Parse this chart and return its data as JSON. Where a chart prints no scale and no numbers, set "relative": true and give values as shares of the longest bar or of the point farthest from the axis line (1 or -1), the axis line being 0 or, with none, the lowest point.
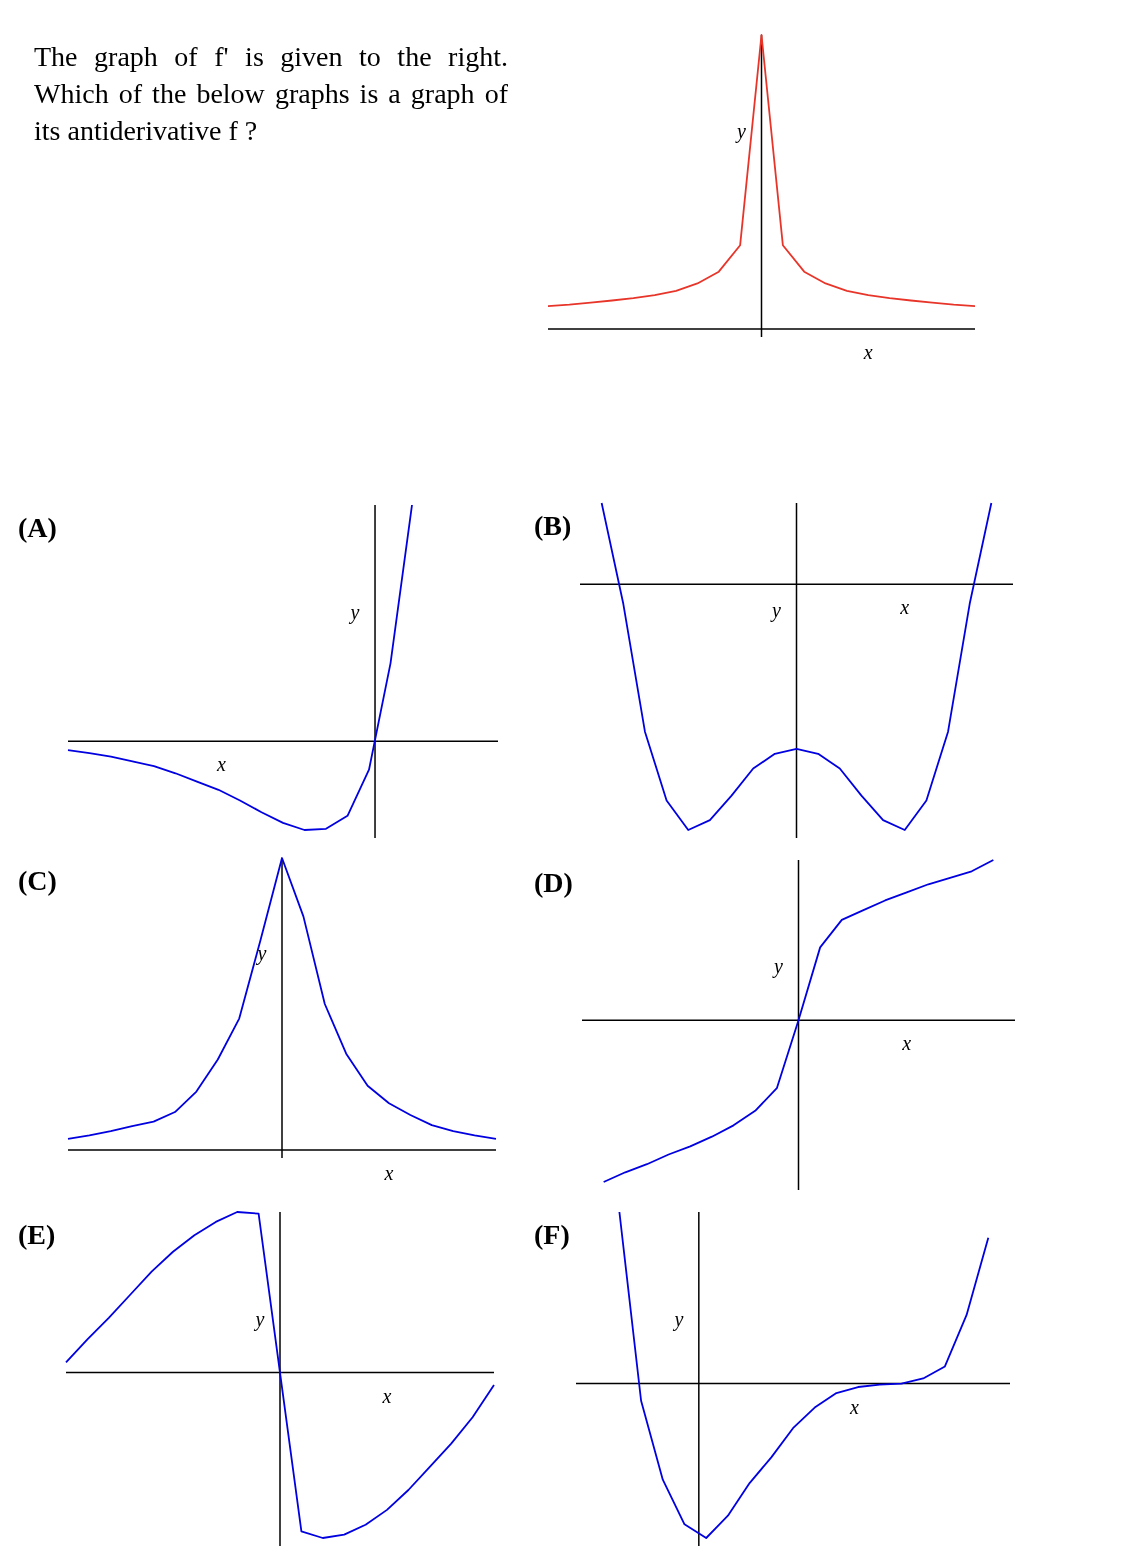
{
  "chart_data": [
    {
      "type": "other",
      "title": "The graph of f' is given to the right. Which of the below graphs is a graph of its antiderivative f ?"
    },
    {
      "type": "line",
      "relative": true,
      "xlabel": "x",
      "ylabel": "y",
      "categories": [
        null,
        null,
        null,
        null,
        null,
        null,
        null,
        null,
        null,
        null,
        null,
        null,
        null,
        null,
        null,
        null,
        null,
        null,
        null,
        null,
        null
      ],
      "series": [
        {
          "color": "#e8352a",
          "values": [
            0.078,
            0.083,
            0.09,
            0.097,
            0.105,
            0.115,
            0.13,
            0.155,
            0.195,
            0.285,
            1,
            0.285,
            0.195,
            0.155,
            0.13,
            0.115,
            0.105,
            0.097,
            0.09,
            0.083,
            0.078
          ]
        }
      ]
    },
    {
      "type": "line",
      "relative": true,
      "title": "(A)",
      "xlabel": "x",
      "ylabel": "y",
      "categories": [
        null,
        null,
        null,
        null,
        null,
        null,
        null,
        null,
        null,
        null,
        null,
        null,
        null,
        null,
        null,
        null,
        null,
        null,
        null,
        null,
        null
      ],
      "series": [
        {
          "color": "#0000e0",
          "values": [
            -0.037,
            -0.05,
            -0.065,
            -0.085,
            -0.105,
            -0.135,
            -0.17,
            -0.205,
            -0.25,
            -0.3,
            -0.345,
            -0.375,
            -0.37,
            -0.315,
            -0.12,
            0.33,
            1,
            null,
            null,
            null,
            null
          ]
        }
      ]
    },
    {
      "type": "line",
      "relative": true,
      "title": "(B)",
      "xlabel": "x",
      "ylabel": "y",
      "categories": [
        null,
        null,
        null,
        null,
        null,
        null,
        null,
        null,
        null,
        null,
        null,
        null,
        null,
        null,
        null,
        null,
        null,
        null,
        null,
        null,
        null
      ],
      "series": [
        {
          "color": "#0000e0",
          "values": [
            null,
            0.33,
            -0.08,
            -0.6,
            -0.88,
            -1,
            -0.96,
            -0.86,
            -0.75,
            -0.69,
            -0.67,
            -0.69,
            -0.75,
            -0.86,
            -0.96,
            -1,
            -0.88,
            -0.6,
            -0.08,
            0.33,
            null
          ]
        }
      ]
    },
    {
      "type": "line",
      "relative": true,
      "title": "(C)",
      "xlabel": "x",
      "ylabel": "y",
      "categories": [
        null,
        null,
        null,
        null,
        null,
        null,
        null,
        null,
        null,
        null,
        null,
        null,
        null,
        null,
        null,
        null,
        null,
        null,
        null,
        null,
        null
      ],
      "series": [
        {
          "color": "#0000e0",
          "values": [
            0.038,
            0.05,
            0.065,
            0.082,
            0.097,
            0.13,
            0.2,
            0.31,
            0.45,
            0.72,
            1,
            0.8,
            0.5,
            0.33,
            0.22,
            0.16,
            0.12,
            0.085,
            0.065,
            0.05,
            0.038
          ]
        }
      ]
    },
    {
      "type": "line",
      "relative": true,
      "title": "(D)",
      "xlabel": "x",
      "ylabel": "y",
      "categories": [
        null,
        null,
        null,
        null,
        null,
        null,
        null,
        null,
        null,
        null,
        null,
        null,
        null,
        null,
        null,
        null,
        null,
        null,
        null,
        null,
        null
      ],
      "series": [
        {
          "color": "#0000e0",
          "values": [
            null,
            -1,
            -0.94,
            -0.89,
            -0.83,
            -0.78,
            -0.72,
            -0.65,
            -0.56,
            -0.42,
            0,
            0.45,
            0.62,
            0.68,
            0.74,
            0.79,
            0.84,
            0.88,
            0.92,
            0.99,
            null
          ]
        }
      ]
    },
    {
      "type": "line",
      "relative": true,
      "title": "(E)",
      "xlabel": "x",
      "ylabel": "y",
      "categories": [
        null,
        null,
        null,
        null,
        null,
        null,
        null,
        null,
        null,
        null,
        null,
        null,
        null,
        null,
        null,
        null,
        null,
        null,
        null,
        null,
        null
      ],
      "series": [
        {
          "color": "#0000e0",
          "values": [
            0.061,
            0.2,
            0.33,
            0.47,
            0.61,
            0.73,
            0.83,
            0.91,
            0.97,
            0.96,
            0,
            -0.96,
            -1,
            -0.98,
            -0.92,
            -0.83,
            -0.71,
            -0.57,
            -0.43,
            -0.27,
            -0.076
          ]
        }
      ]
    },
    {
      "type": "line",
      "relative": true,
      "title": "(F)",
      "xlabel": "x",
      "ylabel": "y",
      "categories": [
        null,
        null,
        null,
        null,
        null,
        null,
        null,
        null,
        null,
        null,
        null,
        null,
        null,
        null,
        null,
        null,
        null,
        null,
        null,
        null,
        null
      ],
      "series": [
        {
          "color": "#0000e0",
          "values": [
            null,
            null,
            1,
            -0.1,
            -0.56,
            -0.82,
            -0.9,
            -0.77,
            -0.58,
            -0.43,
            -0.26,
            -0.14,
            -0.055,
            -0.02,
            -0.006,
            0,
            0.03,
            0.1,
            0.4,
            0.85,
            null
          ]
        }
      ]
    }
  ]
}
